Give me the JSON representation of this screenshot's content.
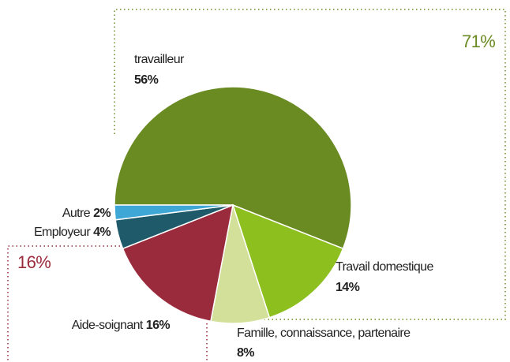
{
  "chart_data": {
    "type": "pie",
    "categories": [
      "travailleur",
      "Travail domestique",
      "Famille, connaissance, partenaire",
      "Aide-soignant",
      "Employeur",
      "Autre"
    ],
    "values": [
      56,
      14,
      8,
      16,
      4,
      2
    ],
    "value_labels": [
      "56%",
      "14%",
      "8%",
      "16%",
      "4%",
      "2%"
    ],
    "colors": [
      "#6a8a22",
      "#8dbf1e",
      "#d3e09a",
      "#9a2b3c",
      "#1f5a6a",
      "#3fa7d6"
    ],
    "annotations": [
      {
        "text": "71%",
        "color": "#6a8a22"
      },
      {
        "text": "16%",
        "color": "#9a2b3c"
      }
    ]
  }
}
